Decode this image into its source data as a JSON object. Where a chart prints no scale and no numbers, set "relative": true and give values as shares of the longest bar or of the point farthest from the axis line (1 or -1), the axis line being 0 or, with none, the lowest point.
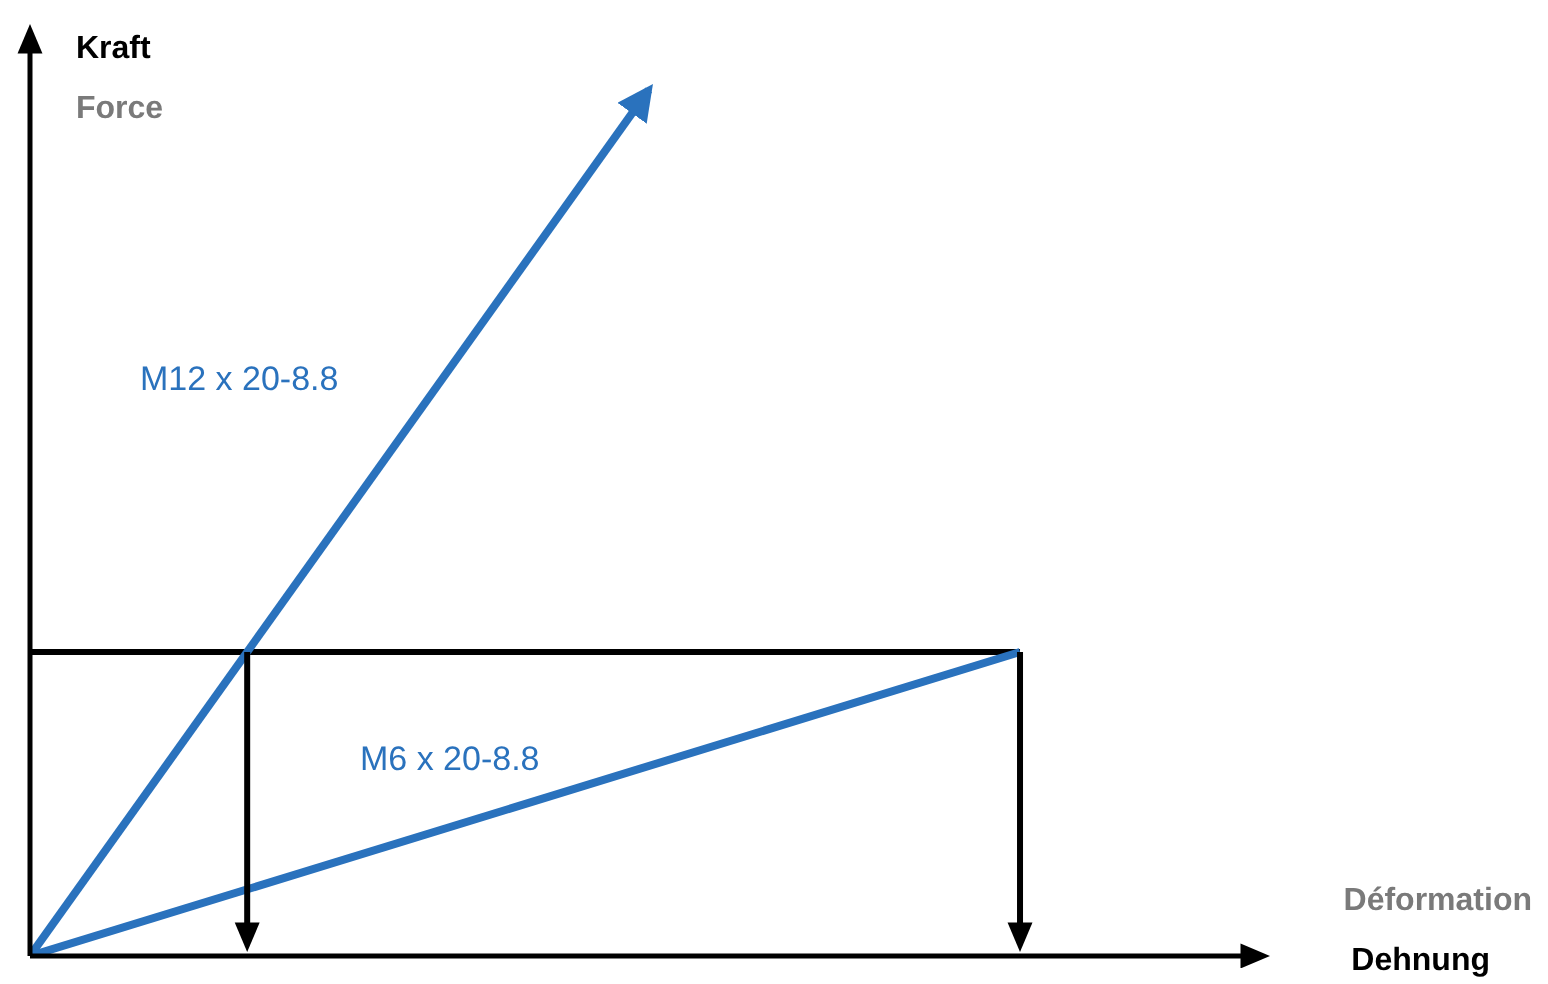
{
  "chart_data": {
    "type": "line",
    "relative": true,
    "ylabel": "Kraft\nForce",
    "annotations": [
      "Déformation\nDehnung"
    ],
    "categories": [
      null,
      null,
      null,
      null,
      null,
      null,
      null,
      null,
      null
    ],
    "series": [
      {
        "name": "M12 x 20-8.8",
        "color": "#2a72bd",
        "values": [
          0,
          null,
          null,
          null,
          null,
          1,
          null,
          null,
          null
        ]
      },
      {
        "name": "M6 x 20-8.8",
        "color": "#2a72bd",
        "values": [
          0,
          null,
          null,
          null,
          null,
          null,
          null,
          null,
          0.351
        ]
      }
    ],
    "ref_lines": [
      {
        "axis": "y",
        "value": 0.351,
        "color": "#000000"
      }
    ],
    "grid": false,
    "legend": false,
    "marker": "none",
    "line_style": "solid"
  }
}
